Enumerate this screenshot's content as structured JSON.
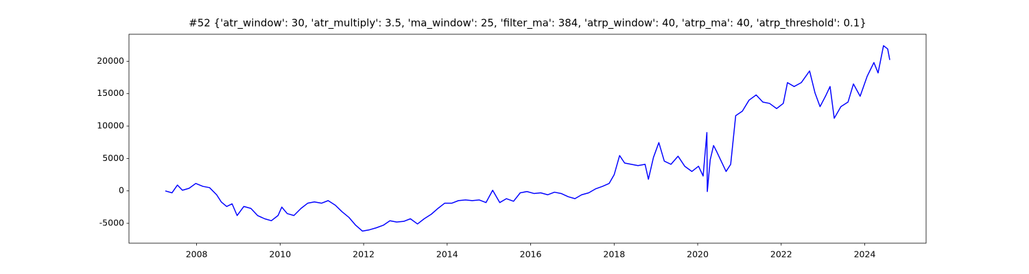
{
  "chart_data": {
    "type": "line",
    "title": "#52 {'atr_window': 30, 'atr_multiply': 3.5, 'ma_window': 25, 'filter_ma': 384, 'atrp_window': 40, 'atrp_ma': 40, 'atrp_threshold': 0.1}",
    "x": [
      2007.25,
      2007.41,
      2007.54,
      2007.66,
      2007.82,
      2007.98,
      2008.15,
      2008.31,
      2008.48,
      2008.59,
      2008.72,
      2008.85,
      2008.97,
      2009.13,
      2009.3,
      2009.46,
      2009.63,
      2009.79,
      2009.95,
      2010.04,
      2010.17,
      2010.33,
      2010.5,
      2010.66,
      2010.82,
      2010.99,
      2011.15,
      2011.32,
      2011.48,
      2011.65,
      2011.81,
      2011.97,
      2012.14,
      2012.3,
      2012.47,
      2012.63,
      2012.79,
      2012.96,
      2013.12,
      2013.29,
      2013.45,
      2013.62,
      2013.78,
      2013.94,
      2014.11,
      2014.27,
      2014.44,
      2014.6,
      2014.77,
      2014.93,
      2015.09,
      2015.26,
      2015.42,
      2015.59,
      2015.75,
      2015.91,
      2016.08,
      2016.24,
      2016.41,
      2016.57,
      2016.73,
      2016.9,
      2017.06,
      2017.22,
      2017.39,
      2017.55,
      2017.72,
      2017.88,
      2018.0,
      2018.13,
      2018.25,
      2018.41,
      2018.57,
      2018.74,
      2018.82,
      2018.94,
      2019.07,
      2019.2,
      2019.36,
      2019.53,
      2019.69,
      2019.86,
      2020.02,
      2020.13,
      2020.22,
      2020.23,
      2020.3,
      2020.38,
      2020.46,
      2020.54,
      2020.68,
      2020.79,
      2020.91,
      2021.07,
      2021.23,
      2021.4,
      2021.56,
      2021.72,
      2021.89,
      2022.05,
      2022.15,
      2022.31,
      2022.48,
      2022.68,
      2022.81,
      2022.93,
      2023.06,
      2023.17,
      2023.27,
      2023.43,
      2023.6,
      2023.73,
      2023.89,
      2024.06,
      2024.22,
      2024.32,
      2024.45,
      2024.55,
      2024.6
    ],
    "series": [
      {
        "color": "#0000ff",
        "values": [
          0,
          -300,
          900,
          100,
          400,
          1150,
          700,
          500,
          -600,
          -1700,
          -2400,
          -2000,
          -3800,
          -2400,
          -2700,
          -3800,
          -4300,
          -4600,
          -3800,
          -2500,
          -3500,
          -3800,
          -2700,
          -1900,
          -1700,
          -1900,
          -1500,
          -2200,
          -3200,
          -4100,
          -5300,
          -6200,
          -6000,
          -5700,
          -5300,
          -4600,
          -4800,
          -4700,
          -4300,
          -5100,
          -4300,
          -3600,
          -2700,
          -1900,
          -1900,
          -1500,
          -1400,
          -1500,
          -1400,
          -1800,
          100,
          -1800,
          -1200,
          -1600,
          -300,
          -100,
          -400,
          -300,
          -600,
          -200,
          -400,
          -900,
          -1200,
          -600,
          -300,
          300,
          700,
          1150,
          2500,
          5450,
          4300,
          4100,
          3900,
          4100,
          1800,
          5150,
          7450,
          4600,
          4100,
          5350,
          3800,
          3000,
          3800,
          2300,
          9000,
          -100,
          4800,
          7000,
          6000,
          4900,
          3000,
          4100,
          11600,
          12300,
          14000,
          14800,
          13700,
          13500,
          12700,
          13500,
          16700,
          16100,
          16700,
          18500,
          15100,
          13000,
          14600,
          16100,
          11200,
          13000,
          13700,
          16500,
          14600,
          17700,
          19800,
          18200,
          22400,
          21900,
          20200
        ]
      }
    ],
    "xlim": [
      2006.38,
      2025.47
    ],
    "xticks": [
      2008,
      2010,
      2012,
      2014,
      2016,
      2018,
      2020,
      2022,
      2024
    ],
    "ylim": [
      -8065,
      24165
    ],
    "yticks": [
      -5000,
      0,
      5000,
      10000,
      15000,
      20000
    ]
  }
}
